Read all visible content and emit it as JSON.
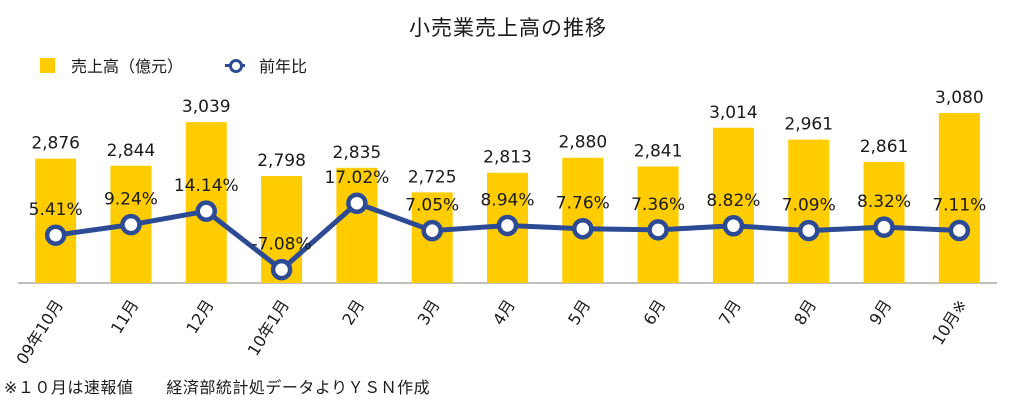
{
  "chart_data": {
    "type": "bar",
    "title": "小売業売上高の推移",
    "categories": [
      "09年10月",
      "11月",
      "12月",
      "10年1月",
      "2月",
      "3月",
      "4月",
      "5月",
      "6月",
      "7月",
      "8月",
      "9月",
      "10月※"
    ],
    "series": [
      {
        "name": "売上高（億元）",
        "type": "bar",
        "color": "#ffcc00",
        "values": [
          2876,
          2844,
          3039,
          2798,
          2835,
          2725,
          2813,
          2880,
          2841,
          3014,
          2961,
          2861,
          3080
        ],
        "labels": [
          "2,876",
          "2,844",
          "3,039",
          "2,798",
          "2,835",
          "2,725",
          "2,813",
          "2,880",
          "2,841",
          "3,014",
          "2,961",
          "2,861",
          "3,080"
        ]
      },
      {
        "name": "前年比",
        "type": "line",
        "color": "#2c4b94",
        "values": [
          5.41,
          9.24,
          14.14,
          -7.08,
          17.02,
          7.05,
          8.94,
          7.76,
          7.36,
          8.82,
          7.09,
          8.32,
          7.11
        ],
        "labels": [
          "5.41%",
          "9.24%",
          "14.14%",
          "-7.08%",
          "17.02%",
          "7.05%",
          "8.94%",
          "7.76%",
          "7.36%",
          "8.82%",
          "7.09%",
          "8.32%",
          "7.11%"
        ]
      }
    ],
    "legend_position": "top-left",
    "grid": false
  },
  "footnote": "※１０月は速報値　　経済部統計処データよりＹＳＮ作成"
}
